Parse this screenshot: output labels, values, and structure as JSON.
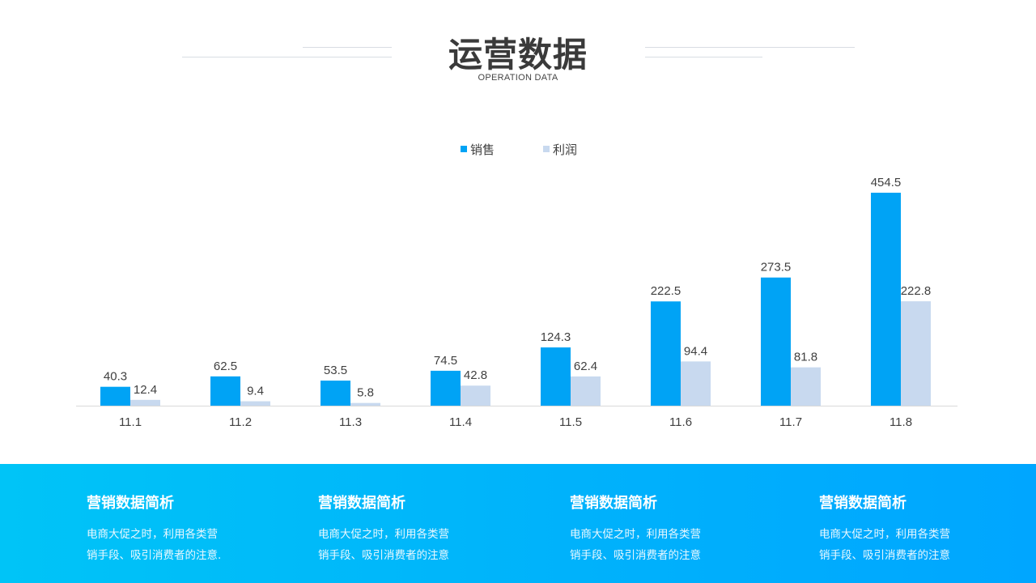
{
  "header": {
    "title": "运营数据",
    "subtitle": "OPERATION DATA"
  },
  "chart_data": {
    "type": "bar",
    "categories": [
      "11.1",
      "11.2",
      "11.3",
      "11.4",
      "11.5",
      "11.6",
      "11.7",
      "11.8"
    ],
    "series": [
      {
        "name": "销售",
        "color": "#00a3f5",
        "values": [
          40.3,
          62.5,
          53.5,
          74.5,
          124.3,
          222.5,
          273.5,
          454.5
        ]
      },
      {
        "name": "利润",
        "color": "#c8d9ef",
        "values": [
          12.4,
          9.4,
          5.8,
          42.8,
          62.4,
          94.4,
          81.8,
          222.8
        ]
      }
    ],
    "ylim": [
      0,
      500
    ],
    "grid": false,
    "legend_position": "top-center",
    "data_labels": true
  },
  "summaries": [
    {
      "title": "营销数据简析",
      "lines": [
        "电商大促之时，利用各类营",
        "销手段、吸引消费者的注意."
      ]
    },
    {
      "title": "营销数据简析",
      "lines": [
        "电商大促之时，利用各类营",
        "销手段、吸引消费者的注意"
      ]
    },
    {
      "title": "营销数据简析",
      "lines": [
        "电商大促之时，利用各类营",
        "销手段、吸引消费者的注意"
      ]
    },
    {
      "title": "营销数据简析",
      "lines": [
        "电商大促之时，利用各类营",
        "销手段、吸引消费者的注意"
      ]
    }
  ]
}
